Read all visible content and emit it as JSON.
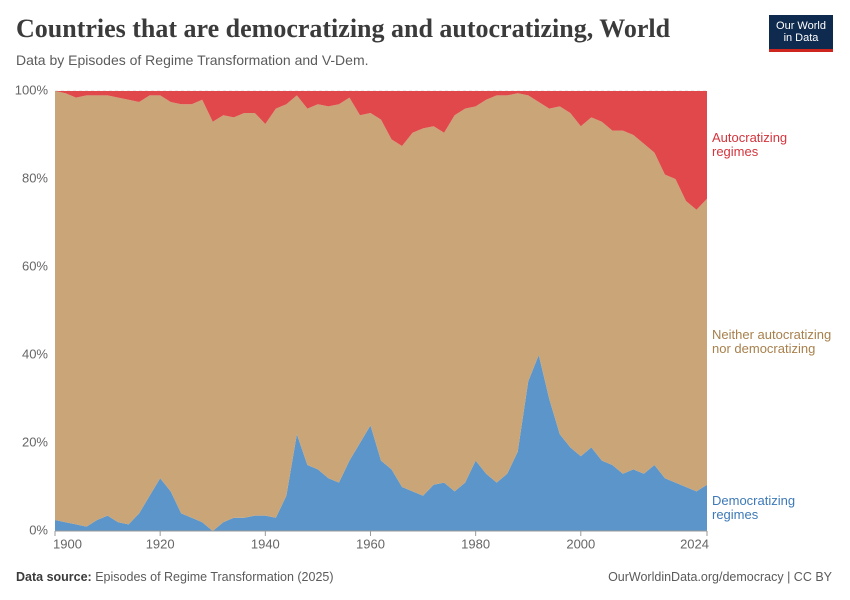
{
  "header": {
    "title": "Countries that are democratizing and autocratizing, World",
    "subtitle": "Data by Episodes of Regime Transformation and V-Dem.",
    "logo": [
      "Our World",
      "in Data"
    ]
  },
  "footer": {
    "source_label": "Data source:",
    "source": "Episodes of Regime Transformation (2025)",
    "credit": "OurWorldinData.org/democracy | CC BY"
  },
  "chart_data": {
    "type": "stacked-area",
    "x": [
      1900,
      1902,
      1904,
      1906,
      1908,
      1910,
      1912,
      1914,
      1916,
      1918,
      1920,
      1922,
      1924,
      1926,
      1928,
      1930,
      1932,
      1934,
      1936,
      1938,
      1940,
      1942,
      1944,
      1946,
      1948,
      1950,
      1952,
      1954,
      1956,
      1958,
      1960,
      1962,
      1964,
      1966,
      1968,
      1970,
      1972,
      1974,
      1976,
      1978,
      1980,
      1982,
      1984,
      1986,
      1988,
      1990,
      1992,
      1994,
      1996,
      1998,
      2000,
      2002,
      2004,
      2006,
      2008,
      2010,
      2012,
      2014,
      2016,
      2018,
      2020,
      2022,
      2024
    ],
    "series": [
      {
        "name": "Democratizing regimes",
        "color": "#5b95c9",
        "label_color": "#3d79b8",
        "values": [
          2.5,
          2,
          1.5,
          1,
          2.5,
          3.5,
          2,
          1.5,
          4,
          8,
          12,
          9,
          4,
          3,
          2,
          0,
          2,
          3,
          3,
          3.5,
          3.5,
          3,
          8,
          22,
          15,
          14,
          12,
          11,
          16,
          20,
          24,
          16,
          14,
          10,
          9,
          8,
          10.5,
          11,
          9,
          11,
          16,
          13,
          11,
          13,
          18,
          34,
          40,
          30,
          22,
          19,
          17,
          19,
          16,
          15,
          13,
          14,
          13,
          15,
          12,
          11,
          10,
          9,
          10.5
        ]
      },
      {
        "name": "Neither autocratizing nor democratizing",
        "color": "#c9a578",
        "label_color": "#a8804c",
        "values": [
          97.5,
          97.5,
          97,
          98,
          96.5,
          95.5,
          96.5,
          96.5,
          93.5,
          91,
          87,
          88.5,
          93,
          94,
          96,
          93,
          92.5,
          91,
          92,
          91.5,
          89,
          93,
          89,
          77,
          81,
          83,
          84.5,
          86,
          82.5,
          74.5,
          71,
          77.5,
          75,
          77.5,
          81.5,
          83.5,
          81.5,
          79.5,
          85.5,
          85,
          80.5,
          85,
          88,
          86,
          81.5,
          65,
          57.5,
          66,
          74.5,
          76,
          75,
          75,
          77,
          76,
          78,
          76,
          75,
          71,
          69,
          69,
          65,
          64,
          65
        ]
      },
      {
        "name": "Autocratizing regimes",
        "color": "#e0484b",
        "label_color": "#d4343c",
        "values": [
          0,
          0.5,
          1.5,
          1,
          1,
          1,
          1.5,
          2,
          2.5,
          1,
          1,
          2.5,
          3,
          3,
          2,
          7,
          5.5,
          6,
          5,
          5,
          7.5,
          4,
          3,
          1,
          4,
          3,
          3.5,
          3,
          1.5,
          5.5,
          5,
          6.5,
          11,
          12.5,
          9.5,
          8.5,
          8,
          9.5,
          5.5,
          4,
          3.5,
          2,
          1,
          1,
          0.5,
          1,
          2.5,
          4,
          3.5,
          5,
          8,
          6,
          7,
          9,
          9,
          10,
          12,
          14,
          19,
          20,
          25,
          27,
          24.5
        ]
      }
    ],
    "xlim": [
      1900,
      2024
    ],
    "xticks": [
      1900,
      1920,
      1940,
      1960,
      1980,
      2000,
      2024
    ],
    "ylim": [
      0,
      100
    ],
    "yticks": [
      {
        "value": 0,
        "label": "0%"
      },
      {
        "value": 20,
        "label": "20%"
      },
      {
        "value": 40,
        "label": "40%"
      },
      {
        "value": 60,
        "label": "60%"
      },
      {
        "value": 80,
        "label": "80%"
      },
      {
        "value": 100,
        "label": "100%"
      }
    ],
    "grid": true
  }
}
